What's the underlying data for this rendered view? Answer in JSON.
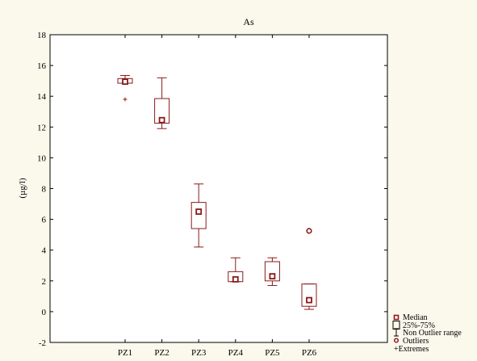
{
  "colors": {
    "background": "#fbf8ec",
    "plot_background": "#ffffff",
    "mark": "#8b1a1a"
  },
  "chart_data": {
    "type": "boxplot",
    "title": "As",
    "xlabel": "",
    "ylabel": "(µg/l)",
    "ylim": [
      -2,
      18
    ],
    "yticks": [
      -2,
      0,
      2,
      4,
      6,
      8,
      10,
      12,
      14,
      16,
      18
    ],
    "grid": false,
    "legend_position": "bottom-right",
    "categories": [
      "PZ1",
      "PZ2",
      "PZ3",
      "PZ4",
      "PZ5",
      "PZ6"
    ],
    "boxes": [
      {
        "category": "PZ1",
        "whisker_low": 14.85,
        "q1": 14.85,
        "median": 14.95,
        "q3": 15.15,
        "whisker_high": 15.35,
        "outliers": [],
        "extremes": [
          13.8
        ]
      },
      {
        "category": "PZ2",
        "whisker_low": 11.9,
        "q1": 12.25,
        "median": 12.45,
        "q3": 13.85,
        "whisker_high": 15.2,
        "outliers": [],
        "extremes": []
      },
      {
        "category": "PZ3",
        "whisker_low": 4.2,
        "q1": 5.4,
        "median": 6.5,
        "q3": 7.1,
        "whisker_high": 8.3,
        "outliers": [],
        "extremes": []
      },
      {
        "category": "PZ4",
        "whisker_low": 1.95,
        "q1": 1.95,
        "median": 2.1,
        "q3": 2.6,
        "whisker_high": 3.5,
        "outliers": [],
        "extremes": []
      },
      {
        "category": "PZ5",
        "whisker_low": 1.7,
        "q1": 2.0,
        "median": 2.3,
        "q3": 3.25,
        "whisker_high": 3.5,
        "outliers": [],
        "extremes": []
      },
      {
        "category": "PZ6",
        "whisker_low": 0.15,
        "q1": 0.35,
        "median": 0.75,
        "q3": 1.8,
        "whisker_high": 1.8,
        "outliers": [
          5.25
        ],
        "extremes": []
      }
    ],
    "legend": [
      "Median",
      "25%-75%",
      "Non Outlier range",
      "Outliers",
      "+Extremes"
    ]
  }
}
